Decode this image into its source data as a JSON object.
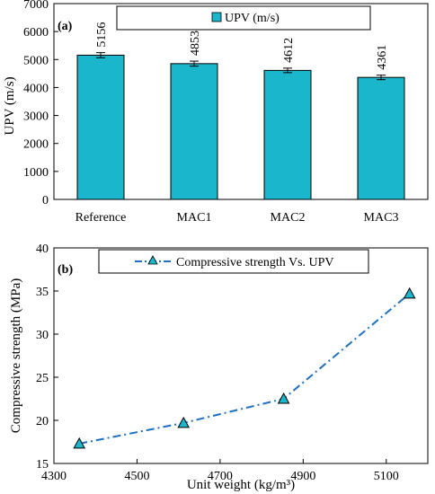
{
  "chart_data": [
    {
      "type": "bar",
      "panel_label": "(a)",
      "categories": [
        "Reference",
        "MAC1",
        "MAC2",
        "MAC3"
      ],
      "series": [
        {
          "name": "UPV (m/s)",
          "values": [
            5156,
            4853,
            4612,
            4361
          ],
          "errors": [
            90,
            90,
            80,
            80
          ]
        }
      ],
      "data_labels": [
        "5156",
        "4853",
        "4612",
        "4361"
      ],
      "ylabel": "UPV (m/s)",
      "ylim": [
        0,
        7000
      ],
      "yticks": [
        "0",
        "1000",
        "2000",
        "3000",
        "4000",
        "5000",
        "6000",
        "7000"
      ],
      "grid": false,
      "legend_position": "top",
      "colors": {
        "bar": "#19B6CC",
        "bar_edge": "#000000"
      }
    },
    {
      "type": "line",
      "panel_label": "(b)",
      "series": [
        {
          "name": "Compressive strength Vs. UPV",
          "x": [
            4361,
            4612,
            4853,
            5156
          ],
          "y": [
            17.3,
            19.7,
            22.5,
            34.7
          ],
          "marker": "triangle",
          "line_style": "dash-dot"
        }
      ],
      "xlabel": "Unit weight (kg/m³)",
      "ylabel": "Compressive strength (MPa)",
      "xlim": [
        4300,
        5200
      ],
      "ylim": [
        15,
        40
      ],
      "xticks": [
        "4300",
        "4500",
        "4700",
        "4900",
        "5100"
      ],
      "yticks": [
        "15",
        "20",
        "25",
        "30",
        "35",
        "40"
      ],
      "grid": false,
      "legend_position": "top",
      "colors": {
        "line": "#1F6FBF",
        "marker_fill": "#19B6CC",
        "marker_edge": "#000000"
      }
    }
  ]
}
